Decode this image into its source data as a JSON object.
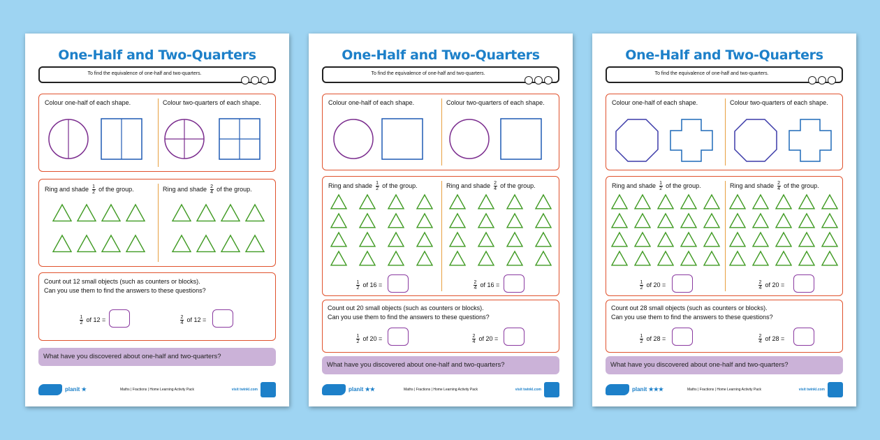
{
  "common": {
    "title": "One-Half and Two-Quarters",
    "objective": "To find the equivalence of one-half and two-quarters.",
    "colour_half": "Colour one-half of each shape.",
    "colour_quarters": "Colour two-quarters of each shape.",
    "ring_prefix": "Ring and shade",
    "ring_suffix": "of the group.",
    "discover": "What have you discovered about one-half and two-quarters?",
    "question": "Can you use them to find the answers to these questions?",
    "footer_brand": "planit",
    "footer_mid": "Maths | Fractions | Home Learning Activity Pack",
    "footer_visit": "visit twinkl.com",
    "frac_half_num": "1",
    "frac_half_den": "2",
    "frac_q_num": "2",
    "frac_q_den": "4"
  },
  "sheets": [
    {
      "stars": "★",
      "count_text": "Count out 12 small objects (such as counters or blocks).",
      "eq_half": "of 12  =",
      "eq_quarter": "of 12  ="
    },
    {
      "stars": "★★",
      "eq_group_half": "of 16 =",
      "eq_group_quarter": "of 16 =",
      "count_text": "Count out 20 small objects (such as counters or blocks).",
      "eq_half": "of 20  =",
      "eq_quarter": "of 20  ="
    },
    {
      "stars": "★★★",
      "eq_group_half": "of 20 =",
      "eq_group_quarter": "of 20 =",
      "count_text": "Count out 28 small objects (such as counters or blocks).",
      "eq_half": "of 28  =",
      "eq_quarter": "of 28  ="
    }
  ]
}
